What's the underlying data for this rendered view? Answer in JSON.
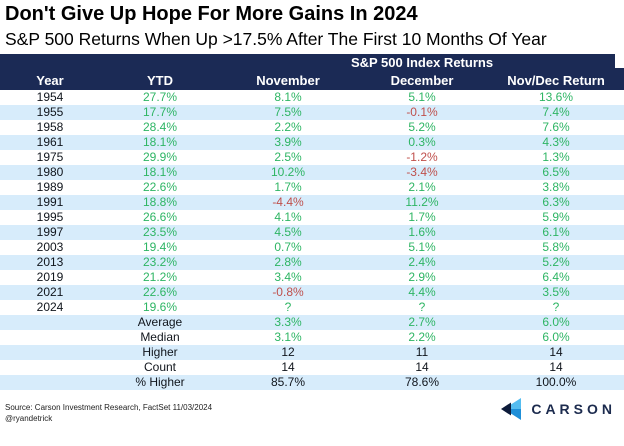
{
  "chart_data": {
    "type": "table",
    "title": "Don't Give Up Hope For More Gains In 2024",
    "subtitle": "S&P 500 Returns When Up >17.5% After The First 10 Months Of Year",
    "group_header": "S&P 500 Index Returns",
    "columns": [
      "Year",
      "YTD",
      "November",
      "December",
      "Nov/Dec Return"
    ],
    "rows": [
      {
        "year": "1954",
        "values": [
          "27.7%",
          "8.1%",
          "5.1%",
          "13.6%"
        ]
      },
      {
        "year": "1955",
        "values": [
          "17.7%",
          "7.5%",
          "-0.1%",
          "7.4%"
        ]
      },
      {
        "year": "1958",
        "values": [
          "28.4%",
          "2.2%",
          "5.2%",
          "7.6%"
        ]
      },
      {
        "year": "1961",
        "values": [
          "18.1%",
          "3.9%",
          "0.3%",
          "4.3%"
        ]
      },
      {
        "year": "1975",
        "values": [
          "29.9%",
          "2.5%",
          "-1.2%",
          "1.3%"
        ]
      },
      {
        "year": "1980",
        "values": [
          "18.1%",
          "10.2%",
          "-3.4%",
          "6.5%"
        ]
      },
      {
        "year": "1989",
        "values": [
          "22.6%",
          "1.7%",
          "2.1%",
          "3.8%"
        ]
      },
      {
        "year": "1991",
        "values": [
          "18.8%",
          "-4.4%",
          "11.2%",
          "6.3%"
        ]
      },
      {
        "year": "1995",
        "values": [
          "26.6%",
          "4.1%",
          "1.7%",
          "5.9%"
        ]
      },
      {
        "year": "1997",
        "values": [
          "23.5%",
          "4.5%",
          "1.6%",
          "6.1%"
        ]
      },
      {
        "year": "2003",
        "values": [
          "19.4%",
          "0.7%",
          "5.1%",
          "5.8%"
        ]
      },
      {
        "year": "2013",
        "values": [
          "23.2%",
          "2.8%",
          "2.4%",
          "5.2%"
        ]
      },
      {
        "year": "2019",
        "values": [
          "21.2%",
          "3.4%",
          "2.9%",
          "6.4%"
        ]
      },
      {
        "year": "2021",
        "values": [
          "22.6%",
          "-0.8%",
          "4.4%",
          "3.5%"
        ]
      },
      {
        "year": "2024",
        "values": [
          "19.6%",
          "?",
          "?",
          "?"
        ]
      }
    ],
    "summary_rows": [
      {
        "label": "Average",
        "values": [
          "3.3%",
          "2.7%",
          "6.0%"
        ],
        "tone": "green"
      },
      {
        "label": "Median",
        "values": [
          "3.1%",
          "2.2%",
          "6.0%"
        ],
        "tone": "green"
      },
      {
        "label": "Higher",
        "values": [
          "12",
          "11",
          "14"
        ],
        "tone": "dark"
      },
      {
        "label": "Count",
        "values": [
          "14",
          "14",
          "14"
        ],
        "tone": "dark"
      },
      {
        "label": "% Higher",
        "values": [
          "85.7%",
          "78.6%",
          "100.0%"
        ],
        "tone": "dark"
      }
    ]
  },
  "footer": {
    "source": "Source: Carson Investment Research, FactSet 11/03/2024",
    "handle": "@ryandetrick",
    "logo_text": "CARSON"
  },
  "colors": {
    "header_bg": "#1b2a55",
    "positive": "#2eb564",
    "negative": "#bf4f4b",
    "row_alt_bg": "#d7ecfb",
    "logo_light_blue": "#55bdf0",
    "logo_mid_blue": "#1e8fd8",
    "logo_navy": "#0d1b3a"
  }
}
